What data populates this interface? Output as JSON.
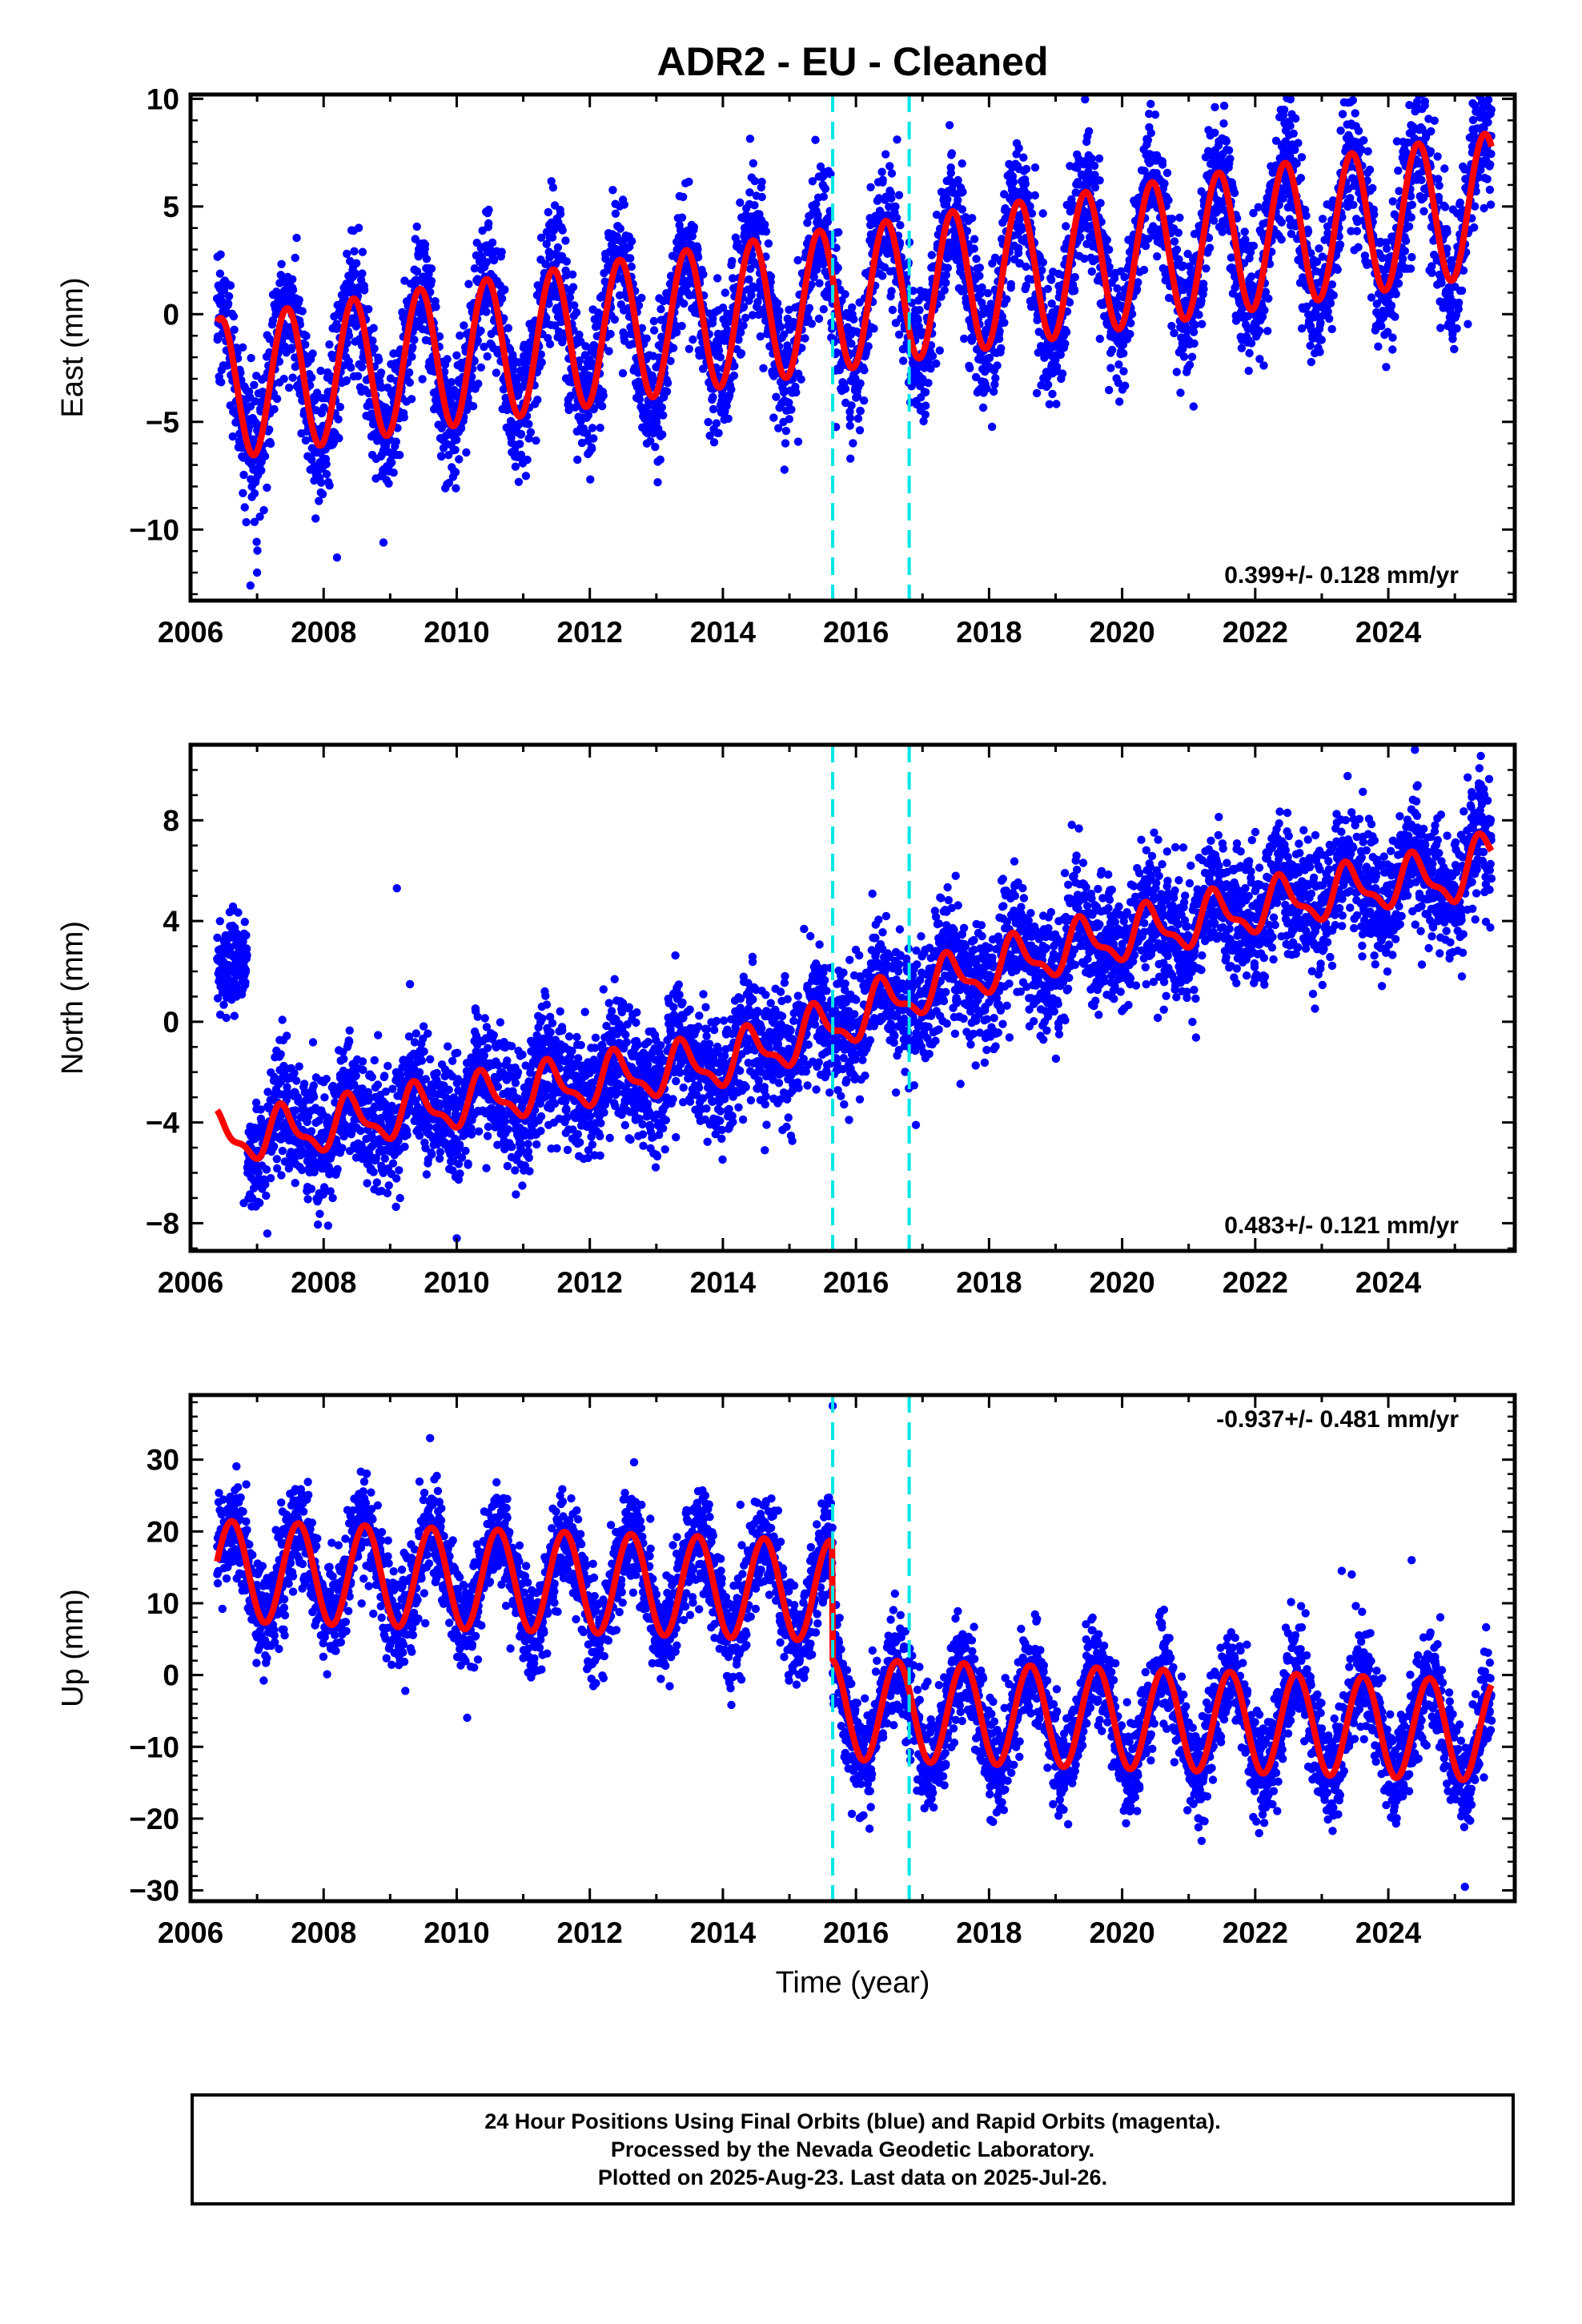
{
  "figure": {
    "title": "ADR2  - EU - Cleaned",
    "time_label": "Time (year)"
  },
  "footer": {
    "line1": "24 Hour Positions Using Final Orbits (blue) and Rapid Orbits (magenta).",
    "line2": "Processed by the Nevada Geodetic Laboratory.",
    "line3": "Plotted on 2025-Aug-23. Last data on 2025-Jul-26."
  },
  "colors": {
    "points": "#0000ff",
    "model": "#ff0000",
    "breaks": "#00e5e5",
    "axes": "#000000"
  },
  "chart_data": [
    {
      "type": "scatter",
      "id": "east",
      "ylabel": "East (mm)",
      "annotation": "0.399+/- 0.128 mm/yr",
      "annotation_pos": "bottom-right",
      "xlim": [
        2006.0,
        2025.9
      ],
      "ylim": [
        -13.3,
        10.2
      ],
      "xticks": [
        2006,
        2008,
        2010,
        2012,
        2014,
        2016,
        2018,
        2020,
        2022,
        2024
      ],
      "yticks": [
        10,
        5,
        0,
        -5,
        -10
      ],
      "breaks": [
        2015.65,
        2016.8
      ],
      "model": {
        "start": 2006.4,
        "end": 2025.55,
        "ref_year": 2006.4,
        "offset": -3.5,
        "rate": 0.45,
        "accel": 0.0,
        "annual_amp": 3.3,
        "annual_phase_year": 0.45,
        "semiannual_amp": 0.0,
        "steps": [],
        "noise": 1.6,
        "outliers": [
          [
            2006.9,
            -12.6
          ],
          [
            2007.0,
            -12.0
          ],
          [
            2008.9,
            -10.6
          ],
          [
            2008.2,
            -11.3
          ]
        ]
      },
      "grid": false
    },
    {
      "type": "scatter",
      "id": "north",
      "ylabel": "North (mm)",
      "annotation": "0.483+/- 0.121 mm/yr",
      "annotation_pos": "bottom-right",
      "xlim": [
        2006.0,
        2025.9
      ],
      "ylim": [
        -9.1,
        11.0
      ],
      "xticks": [
        2006,
        2008,
        2010,
        2012,
        2014,
        2016,
        2018,
        2020,
        2022,
        2024
      ],
      "yticks": [
        8,
        4,
        0,
        -4,
        -8
      ],
      "breaks": [
        2015.65,
        2016.8
      ],
      "model": {
        "start": 2006.4,
        "end": 2025.55,
        "ref_year": 2006.4,
        "offset": -4.6,
        "rate": 0.0,
        "accel": 0.0,
        "annual_amp": 0.9,
        "annual_phase_year": 0.4,
        "semiannual_amp": 0.35,
        "steps": [],
        "trend_points": [
          [
            2006.4,
            -4.6
          ],
          [
            2007.5,
            -4.4
          ],
          [
            2009.0,
            -3.7
          ],
          [
            2011.0,
            -2.8
          ],
          [
            2013.0,
            -2.0
          ],
          [
            2014.0,
            -1.6
          ],
          [
            2015.0,
            -0.8
          ],
          [
            2016.0,
            0.2
          ],
          [
            2017.0,
            1.3
          ],
          [
            2018.0,
            2.1
          ],
          [
            2019.0,
            2.8
          ],
          [
            2020.0,
            3.4
          ],
          [
            2021.0,
            3.9
          ],
          [
            2022.0,
            4.5
          ],
          [
            2023.0,
            5.0
          ],
          [
            2024.0,
            5.5
          ],
          [
            2025.0,
            5.7
          ],
          [
            2025.55,
            6.6
          ]
        ],
        "noise": 1.25,
        "early_cluster": [
          2006.4,
          2006.85,
          2.3
        ],
        "outliers": [
          [
            2009.1,
            5.3
          ],
          [
            2010.0,
            -8.6
          ],
          [
            2024.4,
            10.8
          ],
          [
            2016.9,
            -4.1
          ],
          [
            2006.8,
            -7.2
          ]
        ]
      },
      "grid": false
    },
    {
      "type": "scatter",
      "id": "up",
      "ylabel": "Up (mm)",
      "annotation": "-0.937+/- 0.481 mm/yr",
      "annotation_pos": "top-right",
      "xlim": [
        2006.0,
        2025.9
      ],
      "ylim": [
        -31.5,
        39.0
      ],
      "xticks": [
        2006,
        2008,
        2010,
        2012,
        2014,
        2016,
        2018,
        2020,
        2022,
        2024
      ],
      "yticks": [
        30,
        20,
        10,
        0,
        -10,
        -20,
        -30
      ],
      "breaks": [
        2015.65,
        2016.8
      ],
      "model": {
        "start": 2006.4,
        "end": 2025.55,
        "ref_year": 2006.4,
        "offset": 14.5,
        "rate": -0.3,
        "accel": 0.0,
        "annual_amp": 7.0,
        "annual_phase_year": 0.62,
        "semiannual_amp": 0.0,
        "steps": [
          [
            2015.65,
            -16.5
          ]
        ],
        "noise": 3.6,
        "outliers": [
          [
            2015.65,
            37.5
          ],
          [
            2009.6,
            33.0
          ],
          [
            2023.3,
            14.5
          ],
          [
            2023.45,
            14.0
          ],
          [
            2024.35,
            16.0
          ],
          [
            2025.15,
            -29.5
          ]
        ]
      },
      "grid": false
    }
  ]
}
